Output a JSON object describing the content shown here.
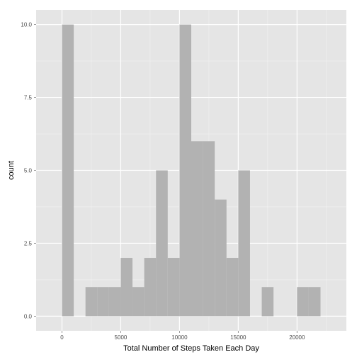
{
  "chart_data": {
    "type": "bar",
    "title": "",
    "xlabel": "Total Number of Steps Taken Each Day",
    "ylabel": "count",
    "xlim": [
      -2200,
      24200
    ],
    "ylim": [
      -0.5,
      10.5
    ],
    "grid": true,
    "bin_width": 1000,
    "x_ticks": [
      0,
      5000,
      10000,
      15000,
      20000
    ],
    "x_tick_labels": [
      "0",
      "5000",
      "10000",
      "15000",
      "20000"
    ],
    "y_ticks": [
      0,
      2.5,
      5,
      7.5,
      10
    ],
    "y_tick_labels": [
      "0.0",
      "2.5",
      "5.0",
      "7.5",
      "10.0"
    ],
    "bins": [
      {
        "x0": 0,
        "x1": 1000,
        "count": 10
      },
      {
        "x0": 2000,
        "x1": 3000,
        "count": 1
      },
      {
        "x0": 3000,
        "x1": 4000,
        "count": 1
      },
      {
        "x0": 4000,
        "x1": 5000,
        "count": 1
      },
      {
        "x0": 5000,
        "x1": 6000,
        "count": 2
      },
      {
        "x0": 6000,
        "x1": 7000,
        "count": 1
      },
      {
        "x0": 7000,
        "x1": 8000,
        "count": 2
      },
      {
        "x0": 8000,
        "x1": 9000,
        "count": 5
      },
      {
        "x0": 9000,
        "x1": 10000,
        "count": 2
      },
      {
        "x0": 10000,
        "x1": 11000,
        "count": 10
      },
      {
        "x0": 11000,
        "x1": 12000,
        "count": 6
      },
      {
        "x0": 12000,
        "x1": 13000,
        "count": 6
      },
      {
        "x0": 13000,
        "x1": 14000,
        "count": 4
      },
      {
        "x0": 14000,
        "x1": 15000,
        "count": 2
      },
      {
        "x0": 15000,
        "x1": 16000,
        "count": 5
      },
      {
        "x0": 17000,
        "x1": 18000,
        "count": 1
      },
      {
        "x0": 20000,
        "x1": 21000,
        "count": 1
      },
      {
        "x0": 21000,
        "x1": 22000,
        "count": 1
      }
    ],
    "colors": {
      "panel": "#e5e5e5",
      "grid_major": "#ffffff",
      "grid_minor": "#f2f2f2",
      "bar": "#b2b2b2"
    }
  }
}
